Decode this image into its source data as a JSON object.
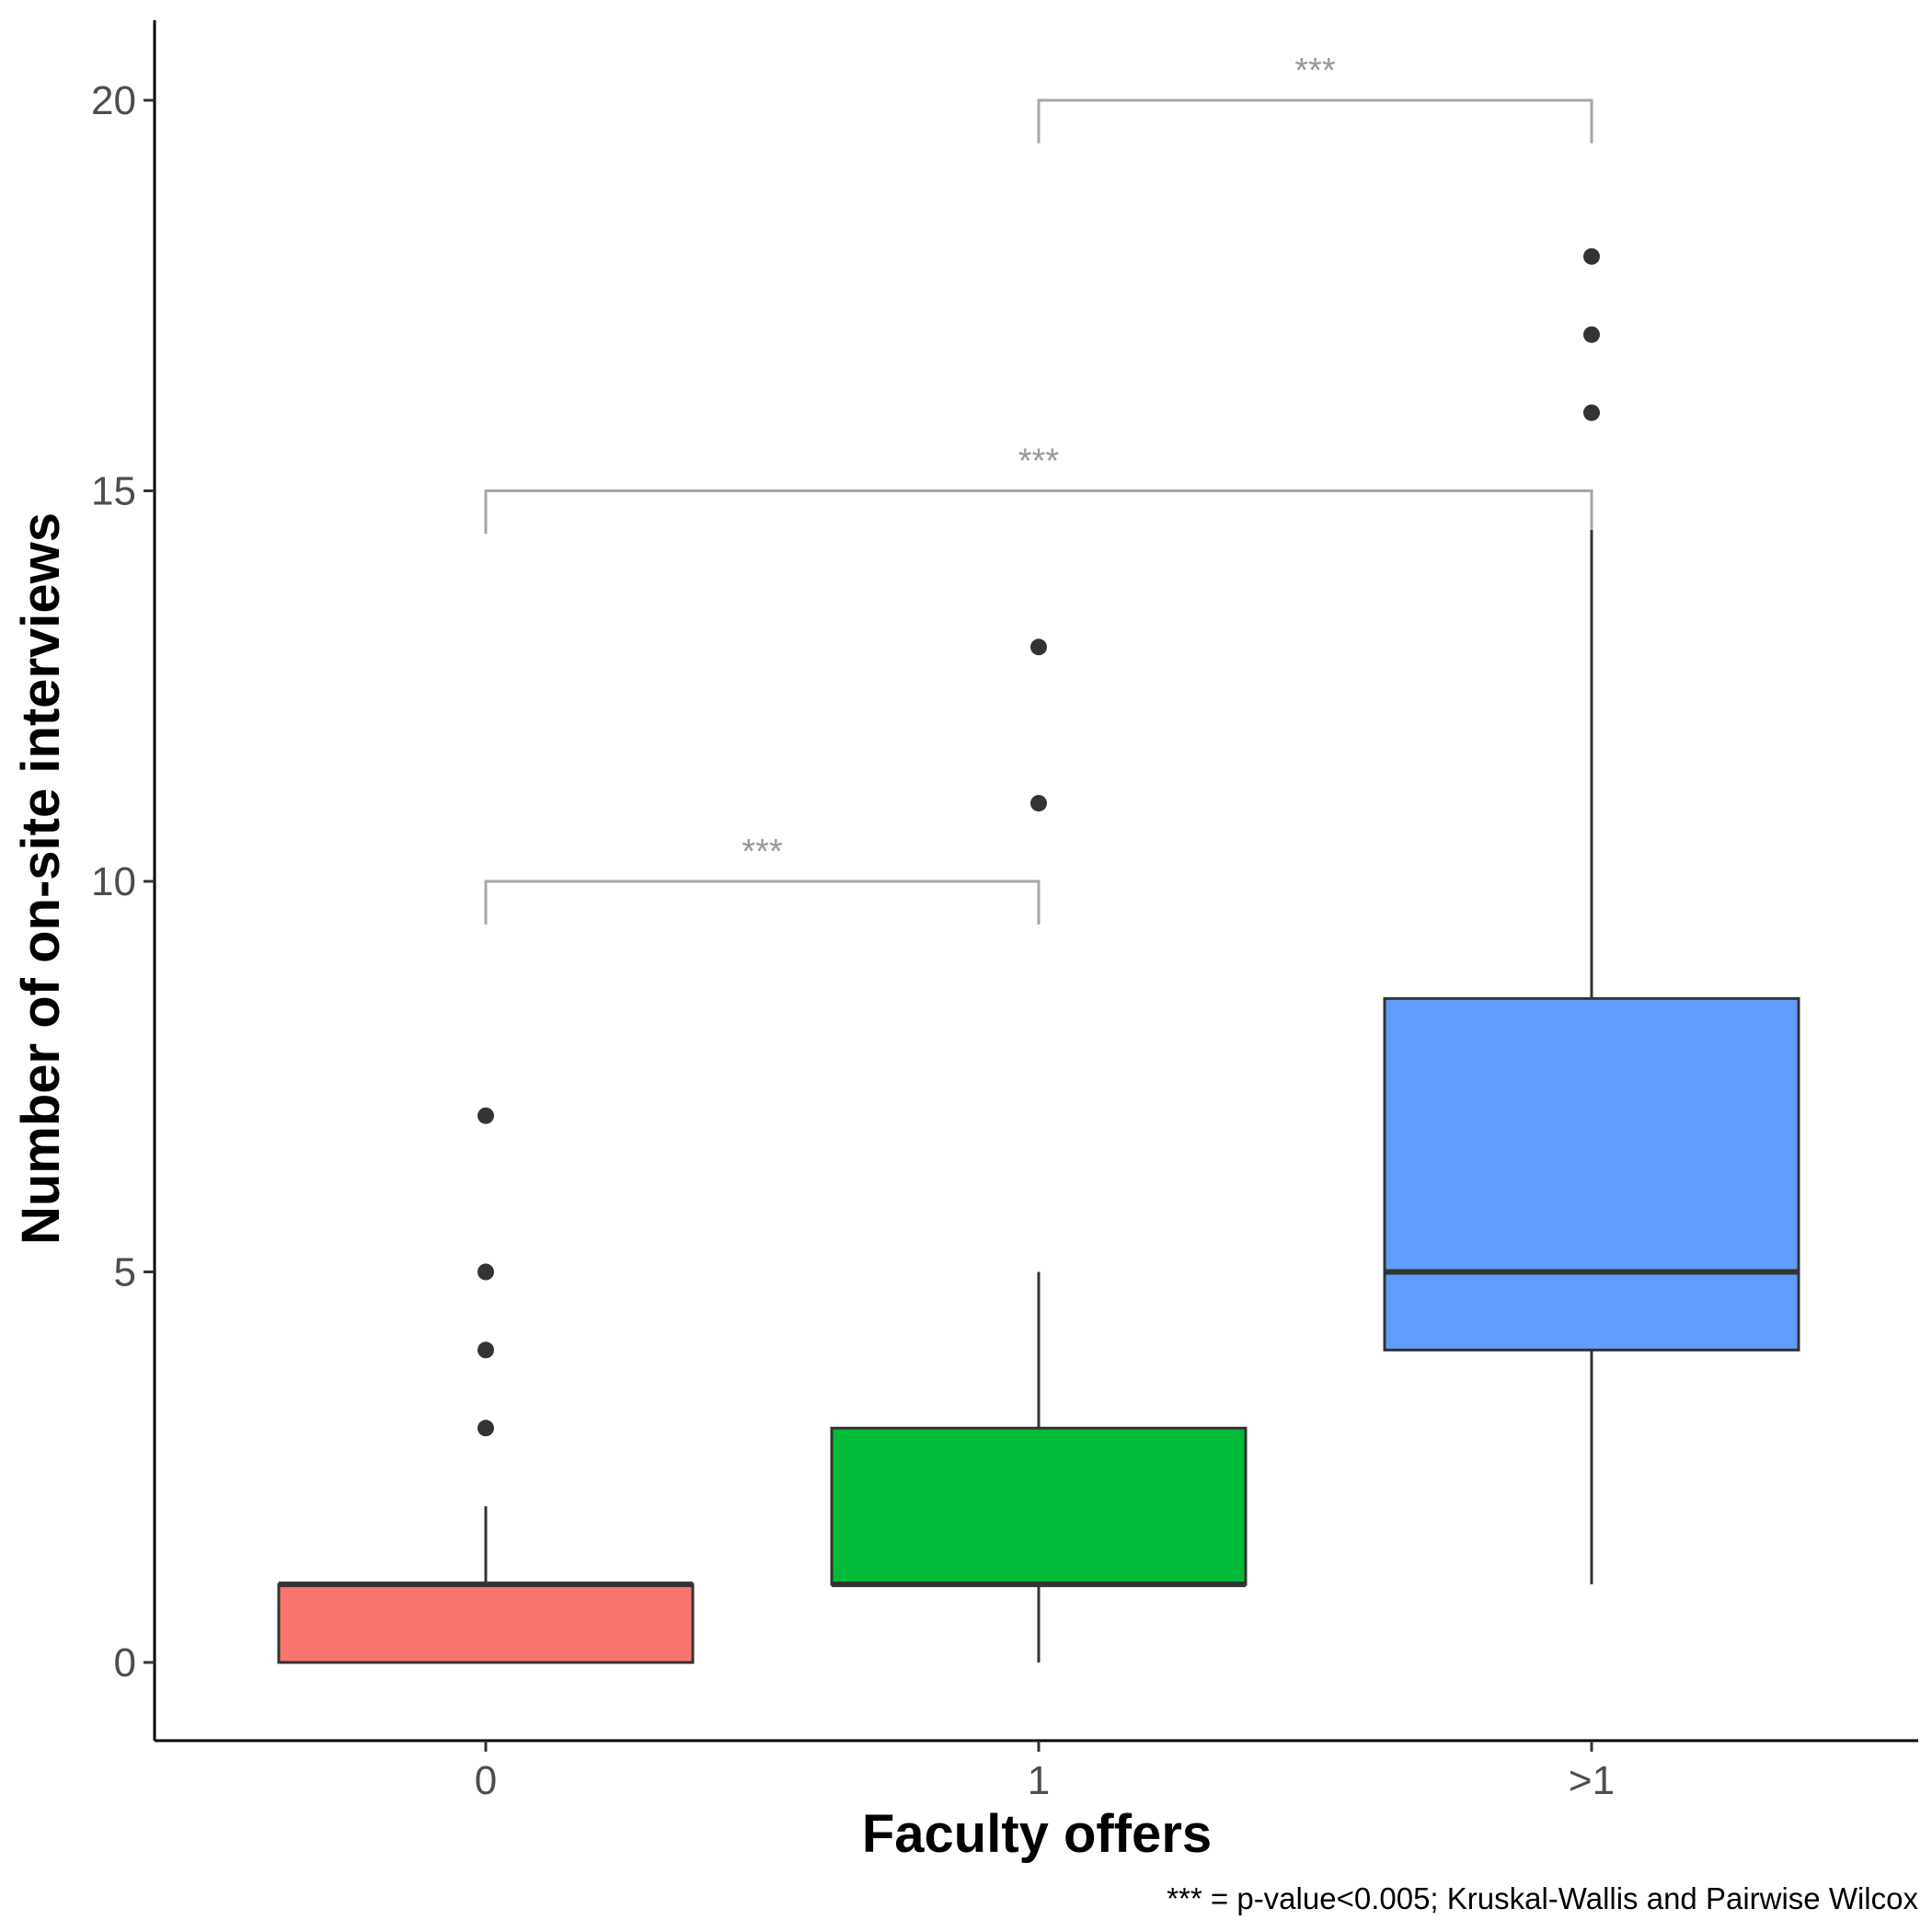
{
  "chart_data": {
    "type": "boxplot",
    "xlabel": "Faculty offers",
    "ylabel": "Number of on-site interviews",
    "caption": "*** = p-value<0.005; Kruskal-Wallis and Pairwise Wilcox",
    "ylim": [
      -1,
      21
    ],
    "y_ticks": [
      0,
      5,
      10,
      15,
      20
    ],
    "y_tick_labels": [
      "0",
      "5",
      "10",
      "15",
      "20"
    ],
    "grid": false,
    "legend": "none",
    "categories": [
      "0",
      "1",
      ">1"
    ],
    "boxes": [
      {
        "category": "0",
        "color": "#F8766D",
        "whisker_low": 0,
        "q1": 0,
        "median": 1,
        "q3": 1,
        "whisker_high": 2,
        "outliers": [
          3,
          4,
          5,
          7
        ]
      },
      {
        "category": "1",
        "color": "#00BA38",
        "whisker_low": 0,
        "q1": 1,
        "median": 1,
        "q3": 3,
        "whisker_high": 5,
        "outliers": [
          11,
          13
        ]
      },
      {
        "category": ">1",
        "color": "#619CFF",
        "whisker_low": 1,
        "q1": 4,
        "median": 5,
        "q3": 8.5,
        "whisker_high": 14.5,
        "outliers": [
          16,
          17,
          18
        ]
      }
    ],
    "significance": [
      {
        "from": "0",
        "to": "1",
        "y": 10,
        "label": "***"
      },
      {
        "from": "0",
        "to": ">1",
        "y": 15,
        "label": "***"
      },
      {
        "from": "1",
        "to": ">1",
        "y": 20,
        "label": "***"
      }
    ]
  }
}
